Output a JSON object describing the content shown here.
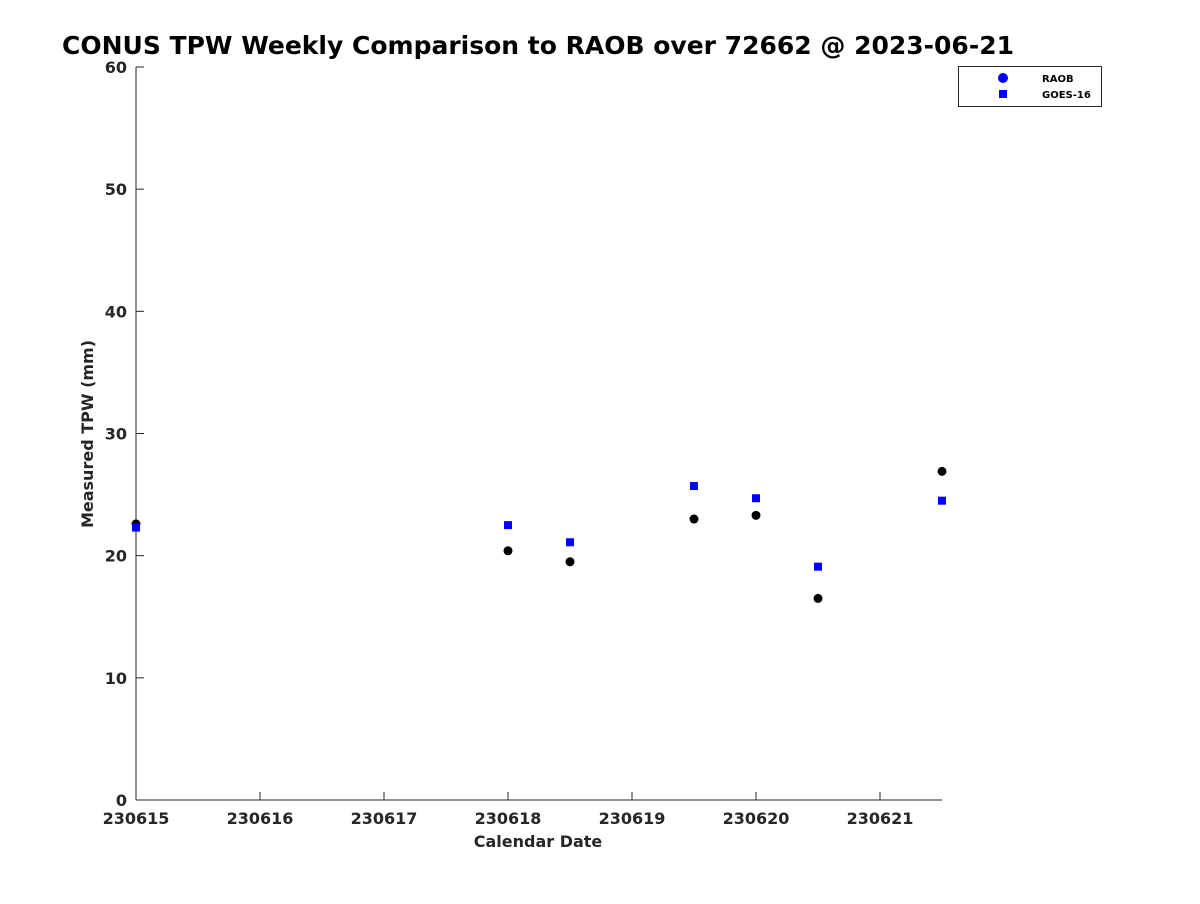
{
  "chart_data": {
    "type": "scatter",
    "title": "CONUS TPW Weekly Comparison to RAOB over 72662 @ 2023-06-21",
    "xlabel": "Calendar Date",
    "ylabel": "Measured TPW (mm)",
    "xlim": [
      0,
      6.5
    ],
    "ylim": [
      0,
      60
    ],
    "x_ticks": [
      0,
      1,
      2,
      3,
      4,
      5,
      6
    ],
    "x_tick_labels": [
      "230615",
      "230616",
      "230617",
      "230618",
      "230619",
      "230620",
      "230621"
    ],
    "y_ticks": [
      0,
      10,
      20,
      30,
      40,
      50,
      60
    ],
    "y_tick_labels": [
      "0",
      "10",
      "20",
      "30",
      "40",
      "50",
      "60"
    ],
    "grid": false,
    "legend_position": "top-right",
    "series": [
      {
        "name": "RAOB",
        "marker": "circle",
        "color": "#000000",
        "legend_color": "#0000ff",
        "x": [
          0,
          3,
          3.5,
          4.5,
          5,
          5.5,
          6.5
        ],
        "values": [
          22.6,
          20.4,
          19.5,
          23.0,
          23.3,
          16.5,
          26.9
        ]
      },
      {
        "name": "GOES-16",
        "marker": "square",
        "color": "#0000ff",
        "legend_color": "#0000ff",
        "x": [
          0,
          3,
          3.5,
          4.5,
          5,
          5.5,
          6.5
        ],
        "values": [
          22.3,
          22.5,
          21.1,
          25.7,
          24.7,
          19.1,
          24.5
        ]
      }
    ]
  }
}
